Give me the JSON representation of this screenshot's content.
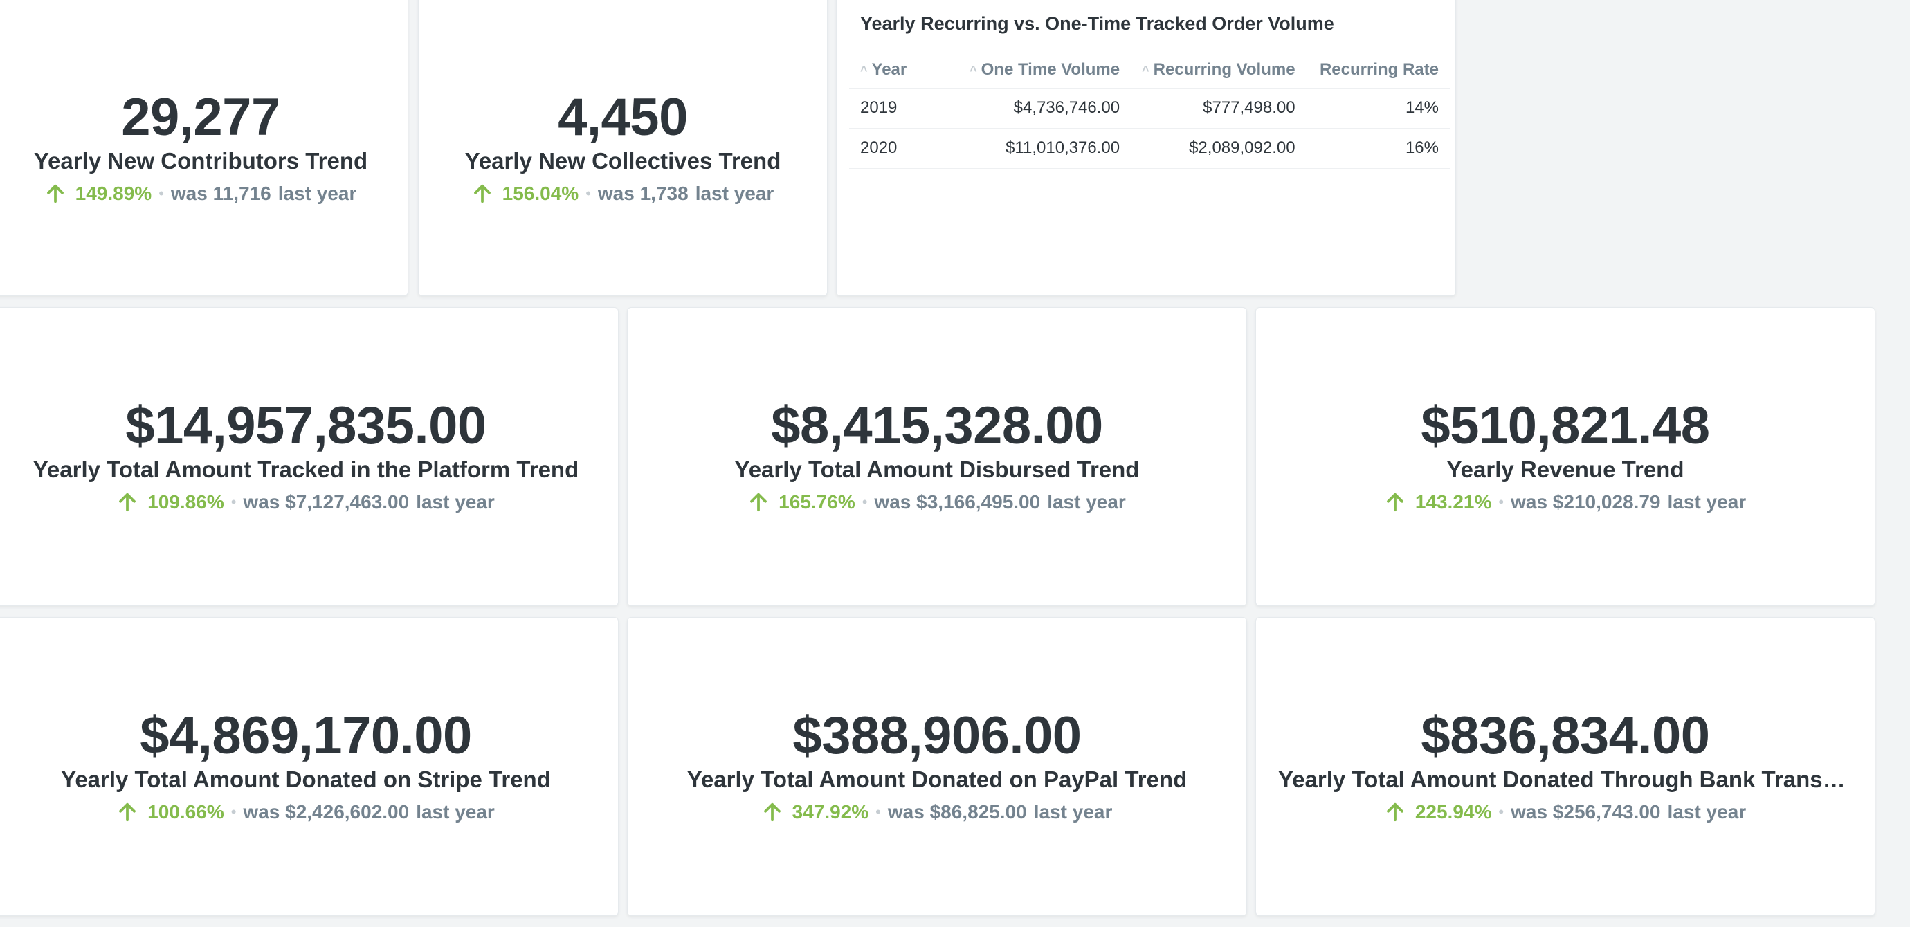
{
  "row1": {
    "contributors": {
      "value": "29,277",
      "title": "Yearly New Contributors Trend",
      "pct": "149.89%",
      "was": "was 11,716",
      "suffix": "last year"
    },
    "collectives": {
      "value": "4,450",
      "title": "Yearly New Collectives Trend",
      "pct": "156.04%",
      "was": "was 1,738",
      "suffix": "last year"
    },
    "table": {
      "title": "Yearly Recurring vs. One-Time Tracked Order Volume",
      "columns": [
        "Year",
        "One Time Volume",
        "Recurring Volume",
        "Recurring Rate"
      ],
      "rows": [
        [
          "2019",
          "$4,736,746.00",
          "$777,498.00",
          "14%"
        ],
        [
          "2020",
          "$11,010,376.00",
          "$2,089,092.00",
          "16%"
        ]
      ]
    }
  },
  "row2": {
    "tracked": {
      "value": "$14,957,835.00",
      "title": "Yearly Total Amount Tracked in the Platform Trend",
      "pct": "109.86%",
      "was": "was $7,127,463.00",
      "suffix": "last year"
    },
    "disbursed": {
      "value": "$8,415,328.00",
      "title": "Yearly Total Amount Disbursed Trend",
      "pct": "165.76%",
      "was": "was $3,166,495.00",
      "suffix": "last year"
    },
    "revenue": {
      "value": "$510,821.48",
      "title": "Yearly Revenue Trend",
      "pct": "143.21%",
      "was": "was $210,028.79",
      "suffix": "last year"
    }
  },
  "row3": {
    "stripe": {
      "value": "$4,869,170.00",
      "title": "Yearly Total Amount Donated on Stripe Trend",
      "pct": "100.66%",
      "was": "was $2,426,602.00",
      "suffix": "last year"
    },
    "paypal": {
      "value": "$388,906.00",
      "title": "Yearly Total Amount Donated on PayPal Trend",
      "pct": "347.92%",
      "was": "was $86,825.00",
      "suffix": "last year"
    },
    "bank": {
      "value": "$836,834.00",
      "title": "Yearly Total Amount Donated Through Bank Transfers Trend",
      "pct": "225.94%",
      "was": "was $256,743.00",
      "suffix": "last year"
    }
  },
  "colors": {
    "positive": "#84bb4c",
    "muted": "#74838f",
    "text": "#2e353b",
    "background": "#f2f4f5"
  },
  "icons": {
    "trend": "arrow-up-icon"
  }
}
